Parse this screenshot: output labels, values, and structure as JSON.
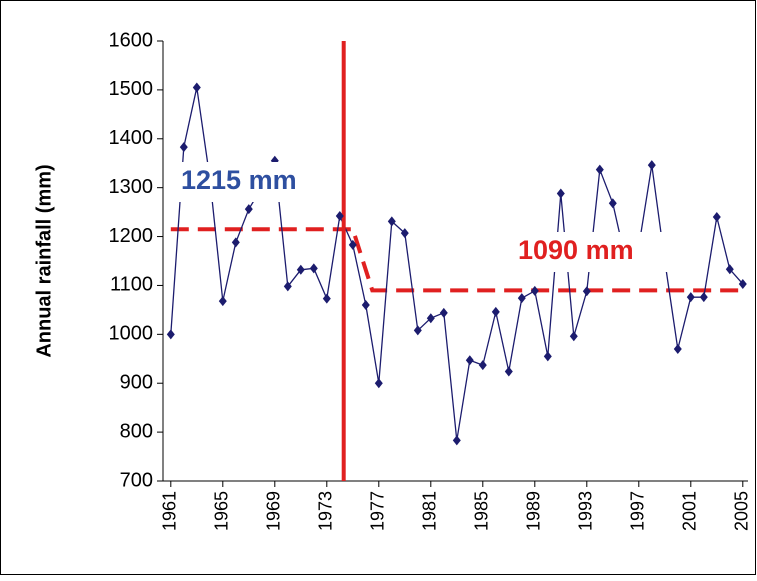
{
  "chart_data": {
    "type": "line",
    "y_label": "Annual rainfall (mm)",
    "x": [
      1961,
      1962,
      1963,
      1964,
      1965,
      1966,
      1967,
      1968,
      1969,
      1970,
      1971,
      1972,
      1973,
      1974,
      1975,
      1976,
      1977,
      1978,
      1979,
      1980,
      1981,
      1982,
      1983,
      1984,
      1985,
      1986,
      1987,
      1988,
      1989,
      1990,
      1991,
      1992,
      1993,
      1994,
      1995,
      1996,
      1997,
      1998,
      1999,
      2000,
      2001,
      2002,
      2003,
      2004,
      2005
    ],
    "series": [
      {
        "name": null,
        "color": "#1c1c6e",
        "values": [
          1000,
          1383,
          1505,
          1320,
          1068,
          1188,
          1256,
          1300,
          1355,
          1098,
          1132,
          1135,
          1073,
          1242,
          1183,
          1060,
          900,
          1231,
          1207,
          1008,
          1033,
          1044,
          783,
          947,
          937,
          1046,
          924,
          1074,
          1089,
          955,
          1288,
          996,
          1088,
          1337,
          1268,
          1150,
          1180,
          1346,
          1150,
          970,
          1076,
          1076,
          1240,
          1133,
          1103
        ]
      }
    ],
    "xlim": [
      1960.4,
      2005.4
    ],
    "xticks": [
      1961,
      1965,
      1969,
      1973,
      1977,
      1981,
      1985,
      1989,
      1993,
      1997,
      2001,
      2005
    ],
    "ylim": [
      700,
      1600
    ],
    "yticks": [
      700,
      800,
      900,
      1000,
      1100,
      1200,
      1300,
      1400,
      1500,
      1600
    ],
    "change_point": {
      "x": 1974.3,
      "color": "#e02020"
    },
    "mean_lines": [
      {
        "label": "1215 mm",
        "value": 1215,
        "x": [
          1961,
          1975
        ],
        "label_color": "#2e4fa0"
      },
      {
        "label": "1090 mm",
        "value": 1090,
        "x": [
          1976.5,
          2005
        ],
        "label_color": "#e02020"
      }
    ],
    "mean_color": "#e02020"
  }
}
